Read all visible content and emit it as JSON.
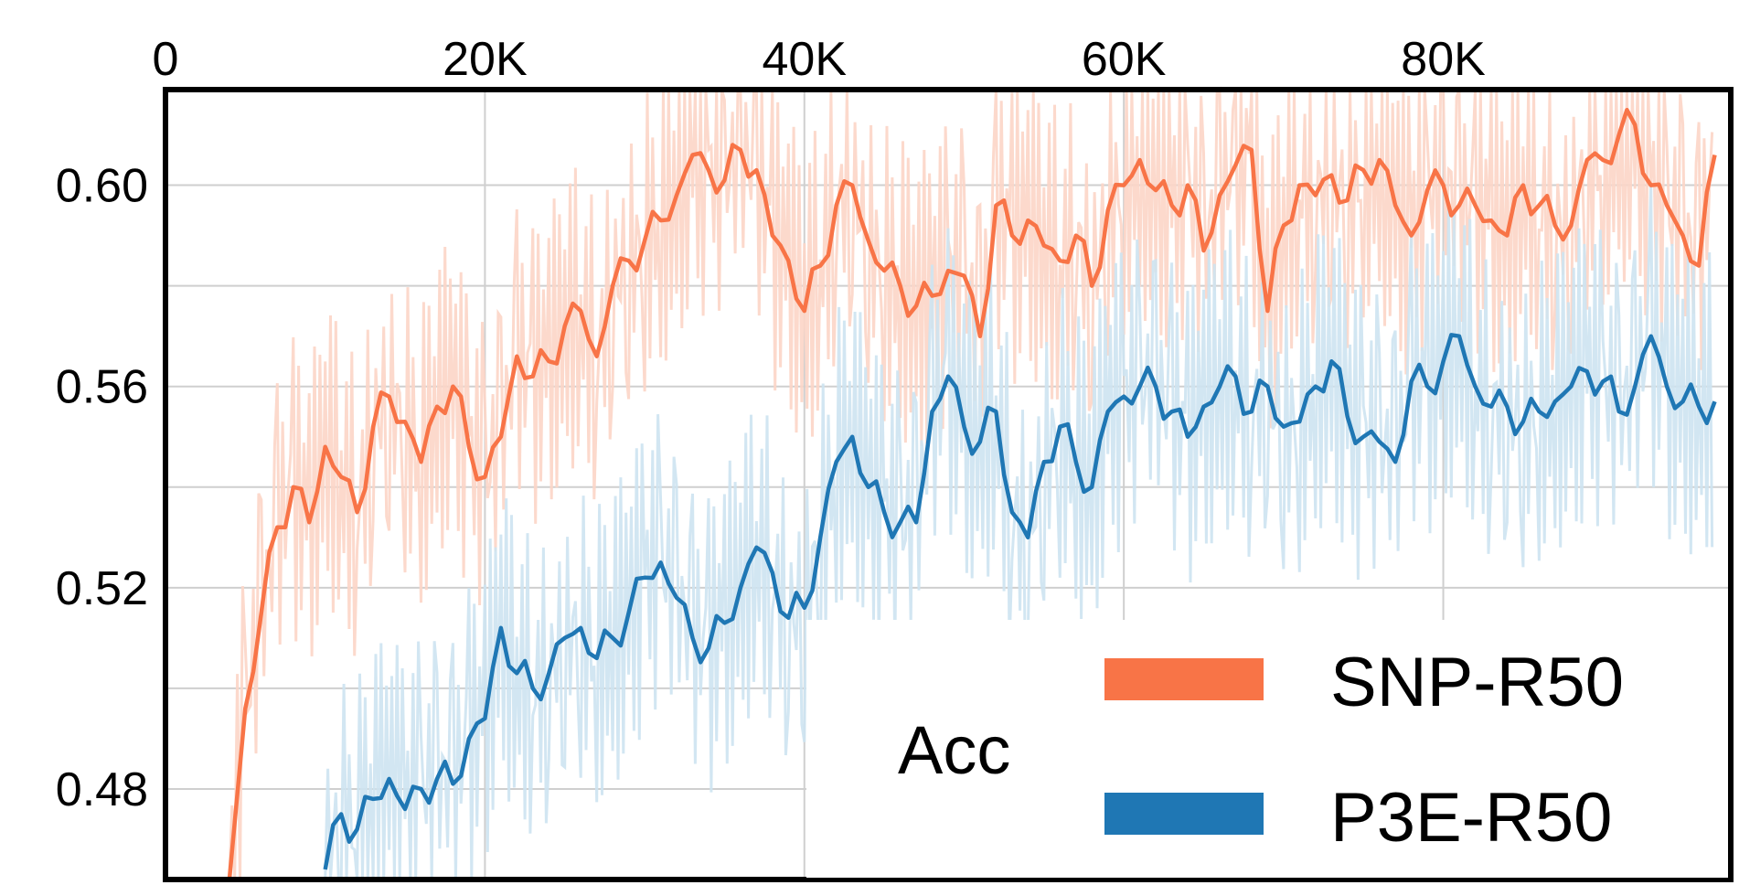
{
  "chart_data": {
    "type": "line",
    "title": "",
    "xlabel": "",
    "ylabel": "",
    "x_axis_position": "top",
    "xlim": [
      0,
      98000
    ],
    "ylim": [
      0.462,
      0.619
    ],
    "x_ticks": [
      0,
      20000,
      40000,
      60000,
      80000
    ],
    "x_tick_labels": [
      "0",
      "20K",
      "40K",
      "60K",
      "80K"
    ],
    "y_ticks": [
      0.48,
      0.52,
      0.56,
      0.6
    ],
    "y_tick_labels": [
      "0.48",
      "0.52",
      "0.56",
      "0.60"
    ],
    "grid": true,
    "legend": {
      "title": "Acc",
      "placement": "bottom-right",
      "entries": [
        "SNP-R50",
        "P3E-R50"
      ]
    },
    "series": [
      {
        "name": "SNP-R50",
        "color": "#f87447",
        "raw_color": "#fcd5c6",
        "x": [
          4000,
          5000,
          6000,
          7000,
          8000,
          9000,
          10000,
          11000,
          12000,
          13000,
          14000,
          15000,
          16000,
          17000,
          18000,
          19000,
          20000,
          21000,
          22000,
          23000,
          24000,
          25000,
          26000,
          27000,
          28000,
          29000,
          30000,
          31000,
          32000,
          33000,
          34000,
          35000,
          36000,
          37000,
          38000,
          39000,
          40000,
          41000,
          42000,
          43000,
          44000,
          45000,
          46000,
          47000,
          48000,
          49000,
          50000,
          51000,
          52000,
          53000,
          54000,
          55000,
          56000,
          57000,
          58000,
          59000,
          60000,
          61000,
          62000,
          63000,
          64000,
          65000,
          66000,
          67000,
          68000,
          69000,
          70000,
          71000,
          72000,
          73000,
          74000,
          75000,
          76000,
          77000,
          78000,
          79000,
          80000,
          81000,
          82000,
          83000,
          84000,
          85000,
          86000,
          87000,
          88000,
          89000,
          90000,
          91000,
          92000,
          93000,
          94000,
          95000,
          96000,
          97000
        ],
        "values": [
          0.462,
          0.496,
          0.515,
          0.532,
          0.54,
          0.533,
          0.548,
          0.542,
          0.535,
          0.552,
          0.558,
          0.553,
          0.545,
          0.556,
          0.56,
          0.548,
          0.542,
          0.55,
          0.566,
          0.562,
          0.565,
          0.572,
          0.575,
          0.566,
          0.58,
          0.585,
          0.589,
          0.593,
          0.598,
          0.606,
          0.603,
          0.601,
          0.607,
          0.603,
          0.59,
          0.585,
          0.575,
          0.584,
          0.596,
          0.6,
          0.589,
          0.583,
          0.58,
          0.576,
          0.578,
          0.583,
          0.582,
          0.57,
          0.596,
          0.59,
          0.593,
          0.588,
          0.585,
          0.59,
          0.58,
          0.595,
          0.6,
          0.605,
          0.599,
          0.596,
          0.6,
          0.587,
          0.598,
          0.604,
          0.607,
          0.575,
          0.592,
          0.6,
          0.598,
          0.602,
          0.597,
          0.603,
          0.605,
          0.596,
          0.59,
          0.599,
          0.6,
          0.596,
          0.596,
          0.593,
          0.59,
          0.6,
          0.596,
          0.592,
          0.592,
          0.605,
          0.605,
          0.61,
          0.612,
          0.6,
          0.596,
          0.59,
          0.584,
          0.606
        ]
      },
      {
        "name": "P3E-R50",
        "color": "#1f77b4",
        "raw_color": "#cde3f1",
        "x": [
          10000,
          11000,
          12000,
          13000,
          14000,
          15000,
          16000,
          17000,
          18000,
          19000,
          20000,
          21000,
          22000,
          23000,
          24000,
          25000,
          26000,
          27000,
          28000,
          29000,
          30000,
          31000,
          32000,
          33000,
          34000,
          35000,
          36000,
          37000,
          38000,
          39000,
          40000,
          41000,
          42000,
          43000,
          44000,
          45000,
          46000,
          47000,
          48000,
          49000,
          50000,
          51000,
          52000,
          53000,
          54000,
          55000,
          56000,
          57000,
          58000,
          59000,
          60000,
          61000,
          62000,
          63000,
          64000,
          65000,
          66000,
          67000,
          68000,
          69000,
          70000,
          71000,
          72000,
          73000,
          74000,
          75000,
          76000,
          77000,
          78000,
          79000,
          80000,
          81000,
          82000,
          83000,
          84000,
          85000,
          86000,
          87000,
          88000,
          89000,
          90000,
          91000,
          92000,
          93000,
          94000,
          95000,
          96000,
          97000
        ],
        "values": [
          0.464,
          0.475,
          0.472,
          0.478,
          0.482,
          0.476,
          0.48,
          0.482,
          0.481,
          0.49,
          0.494,
          0.512,
          0.503,
          0.5,
          0.503,
          0.51,
          0.512,
          0.506,
          0.51,
          0.515,
          0.522,
          0.525,
          0.518,
          0.51,
          0.508,
          0.513,
          0.52,
          0.528,
          0.523,
          0.514,
          0.516,
          0.53,
          0.545,
          0.55,
          0.54,
          0.535,
          0.533,
          0.533,
          0.555,
          0.562,
          0.552,
          0.549,
          0.555,
          0.535,
          0.53,
          0.545,
          0.552,
          0.545,
          0.54,
          0.555,
          0.558,
          0.56,
          0.56,
          0.555,
          0.55,
          0.556,
          0.56,
          0.562,
          0.555,
          0.56,
          0.552,
          0.553,
          0.56,
          0.565,
          0.554,
          0.55,
          0.549,
          0.545,
          0.561,
          0.56,
          0.565,
          0.57,
          0.56,
          0.556,
          0.556,
          0.553,
          0.555,
          0.557,
          0.56,
          0.563,
          0.561,
          0.555,
          0.56,
          0.57,
          0.56,
          0.557,
          0.556,
          0.557
        ]
      }
    ]
  }
}
